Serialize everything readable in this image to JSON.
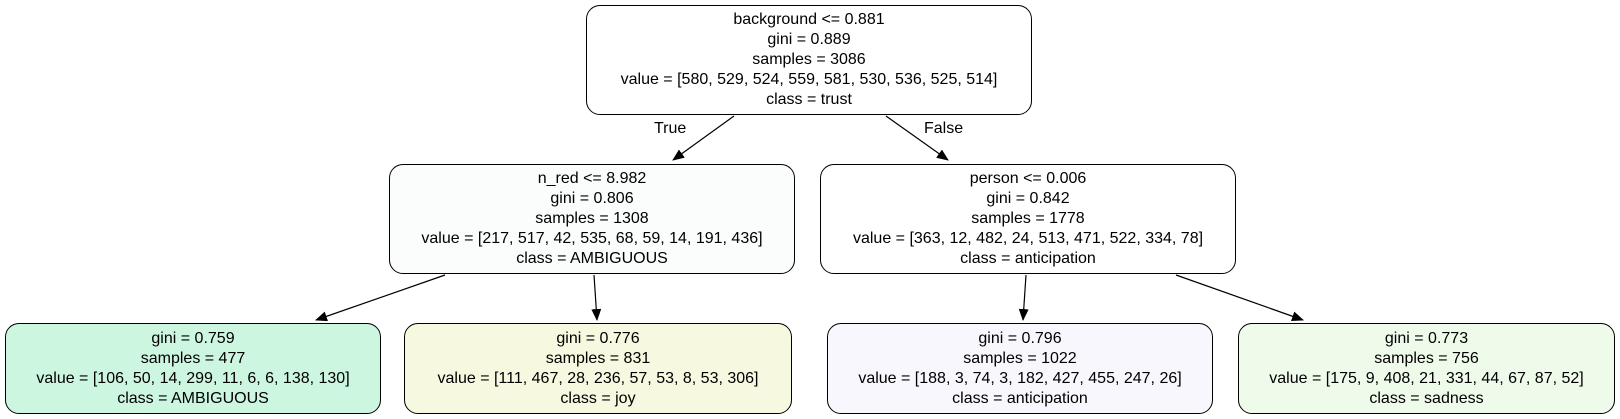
{
  "tree": {
    "edge_labels": {
      "true": "True",
      "false": "False"
    },
    "nodes": [
      {
        "id": "root",
        "color": "#ffffff",
        "lines": [
          "background <= 0.881",
          "gini = 0.889",
          "samples = 3086",
          "value = [580, 529, 524, 559, 581, 530, 536, 525, 514]",
          "class = trust"
        ]
      },
      {
        "id": "left",
        "color": "#fafdfc",
        "lines": [
          "n_red <= 8.982",
          "gini = 0.806",
          "samples = 1308",
          "value = [217, 517, 42, 535, 68, 59, 14, 191, 436]",
          "class = AMBIGUOUS"
        ]
      },
      {
        "id": "right",
        "color": "#ffffff",
        "lines": [
          "person <= 0.006",
          "gini = 0.842",
          "samples = 1778",
          "value = [363, 12, 482, 24, 513, 471, 522, 334, 78]",
          "class = anticipation"
        ]
      },
      {
        "id": "leaf-1",
        "color": "#cdf6e1",
        "lines": [
          "gini = 0.759",
          "samples = 477",
          "value = [106, 50, 14, 299, 11, 6, 6, 138, 130]",
          "class = AMBIGUOUS"
        ]
      },
      {
        "id": "leaf-2",
        "color": "#f6f8df",
        "lines": [
          "gini = 0.776",
          "samples = 831",
          "value = [111, 467, 28, 236, 57, 53, 8, 53, 306]",
          "class = joy"
        ]
      },
      {
        "id": "leaf-3",
        "color": "#f9f7fe",
        "lines": [
          "gini = 0.796",
          "samples = 1022",
          "value = [188, 3, 74, 3, 182, 427, 455, 247, 26]",
          "class = anticipation"
        ]
      },
      {
        "id": "leaf-4",
        "color": "#eefbeb",
        "lines": [
          "gini = 0.773",
          "samples = 756",
          "value = [175, 9, 408, 21, 331, 44, 67, 87, 52]",
          "class = sadness"
        ]
      }
    ]
  }
}
